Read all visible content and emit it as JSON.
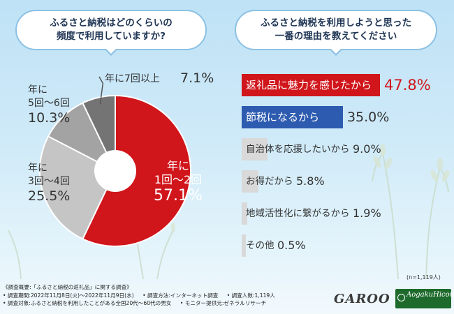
{
  "left_question": {
    "line1": "ふるさと納税はどのくらいの",
    "line2": "頻度で利用していますか?"
  },
  "right_question": {
    "line1": "ふるさと納税を利用しようと思った",
    "line2": "一番の理由を教えてください"
  },
  "chart_data": [
    {
      "type": "pie",
      "title": "ふるさと納税はどのくらいの頻度で利用していますか?",
      "slices": [
        {
          "label_lines": [
            "年に",
            "1回～2回"
          ],
          "value": 57.1,
          "value_text": "57.1%",
          "color": "#d0161b"
        },
        {
          "label_lines": [
            "年に",
            "3回～4回"
          ],
          "value": 25.5,
          "value_text": "25.5%",
          "color": "#c5c5c5"
        },
        {
          "label_lines": [
            "年に",
            "5回～6回"
          ],
          "value": 10.3,
          "value_text": "10.3%",
          "color": "#a3a3a3"
        },
        {
          "label_lines": [
            "年に7回以上"
          ],
          "value": 7.1,
          "value_text": "7.1%",
          "color": "#747474"
        }
      ]
    },
    {
      "type": "bar",
      "orientation": "horizontal",
      "title": "ふるさと納税を利用しようと思った一番の理由を教えてください",
      "categories": [
        "返礼品に魅力を感じたから",
        "節税になるから",
        "自治体を応援したいから",
        "お得だから",
        "地域活性化に繋がるから",
        "その他"
      ],
      "values": [
        47.8,
        35.0,
        9.0,
        5.8,
        1.9,
        0.5
      ],
      "value_texts": [
        "47.8%",
        "35.0%",
        "9.0%",
        "5.8%",
        "1.9%",
        "0.5%"
      ],
      "colors": [
        "#d0161b",
        "#2d5bb0",
        "#d9d9d9",
        "#d9d9d9",
        "#d9d9d9",
        "#d9d9d9"
      ],
      "xlim": [
        0,
        47.8
      ]
    }
  ],
  "sample_note": "(n=1,119人)",
  "footer": {
    "title": "《調査概要:「ふるさと納税の返礼品」に関する調査》",
    "period": "• 調査期間:2022年11月8日(火)～2022年11月9日(水)",
    "method": "• 調査方法:インターネット調査",
    "count": "• 調査人数:1,119人",
    "target": "• 調査対象:ふるさと納税を利用したことがある全国20代～60代の男女",
    "provider": "• モニター提供元:ゼネラルリサーチ"
  },
  "logos": {
    "garoo": "GAROO",
    "aoba": "AogakuHicon"
  }
}
